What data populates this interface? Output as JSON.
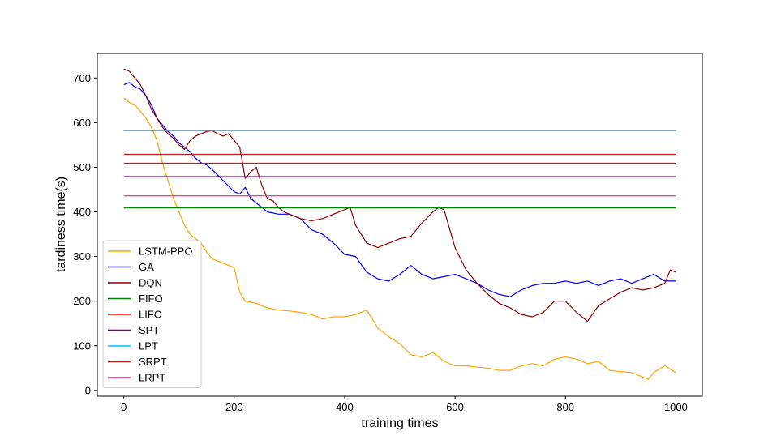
{
  "chart_data": {
    "type": "line",
    "title": "",
    "xlabel": "training times",
    "ylabel": "tardiness time(s)",
    "xlim": [
      -48,
      1048
    ],
    "ylim": [
      -13,
      755
    ],
    "xticks": [
      0,
      200,
      400,
      600,
      800,
      1000
    ],
    "yticks": [
      0,
      100,
      200,
      300,
      400,
      500,
      600,
      700
    ],
    "grid": false,
    "legend_position": "lower-left",
    "series": [
      {
        "name": "LSTM-PPO",
        "color": "#ffa500",
        "x": [
          0,
          10,
          20,
          30,
          40,
          50,
          60,
          70,
          80,
          90,
          100,
          110,
          120,
          130,
          140,
          150,
          160,
          170,
          180,
          190,
          200,
          210,
          220,
          240,
          260,
          280,
          300,
          320,
          340,
          360,
          380,
          400,
          420,
          440,
          460,
          480,
          500,
          520,
          540,
          560,
          580,
          600,
          620,
          640,
          660,
          680,
          700,
          720,
          740,
          760,
          780,
          800,
          820,
          840,
          860,
          880,
          900,
          920,
          940,
          950,
          960,
          980,
          1000
        ],
        "y": [
          655,
          645,
          640,
          625,
          610,
          590,
          560,
          510,
          470,
          430,
          400,
          370,
          350,
          340,
          330,
          310,
          295,
          290,
          285,
          280,
          275,
          220,
          200,
          195,
          185,
          180,
          178,
          175,
          170,
          160,
          165,
          165,
          170,
          180,
          140,
          120,
          105,
          80,
          75,
          85,
          65,
          55,
          55,
          52,
          50,
          45,
          45,
          55,
          60,
          55,
          70,
          75,
          70,
          60,
          65,
          45,
          42,
          40,
          30,
          25,
          40,
          55,
          40
        ]
      },
      {
        "name": "GA",
        "color": "#0000ff",
        "x": [
          0,
          10,
          20,
          30,
          40,
          50,
          60,
          70,
          80,
          90,
          100,
          110,
          120,
          130,
          140,
          150,
          160,
          180,
          200,
          210,
          220,
          230,
          240,
          260,
          280,
          300,
          320,
          340,
          360,
          380,
          400,
          420,
          440,
          460,
          480,
          500,
          520,
          540,
          560,
          580,
          600,
          620,
          640,
          660,
          680,
          700,
          720,
          740,
          760,
          780,
          800,
          820,
          840,
          860,
          880,
          900,
          920,
          940,
          960,
          980,
          1000
        ],
        "y": [
          685,
          690,
          680,
          675,
          660,
          640,
          610,
          595,
          580,
          570,
          555,
          545,
          535,
          520,
          510,
          505,
          495,
          470,
          445,
          440,
          455,
          430,
          420,
          400,
          395,
          395,
          385,
          360,
          350,
          330,
          305,
          300,
          265,
          250,
          245,
          260,
          280,
          260,
          250,
          255,
          260,
          250,
          240,
          225,
          215,
          210,
          225,
          235,
          240,
          240,
          245,
          240,
          245,
          235,
          245,
          250,
          240,
          250,
          260,
          245,
          245
        ]
      },
      {
        "name": "DQN",
        "color": "#8b0000",
        "x": [
          0,
          10,
          20,
          30,
          40,
          50,
          60,
          70,
          80,
          90,
          100,
          110,
          120,
          130,
          140,
          150,
          160,
          170,
          180,
          190,
          200,
          210,
          220,
          230,
          240,
          250,
          260,
          270,
          280,
          290,
          300,
          320,
          340,
          360,
          380,
          400,
          410,
          420,
          440,
          460,
          480,
          500,
          520,
          540,
          560,
          570,
          580,
          600,
          620,
          640,
          660,
          680,
          700,
          720,
          740,
          760,
          780,
          800,
          820,
          840,
          860,
          880,
          900,
          920,
          940,
          960,
          980,
          990,
          1000
        ],
        "y": [
          720,
          715,
          700,
          685,
          660,
          630,
          610,
          590,
          575,
          565,
          550,
          540,
          560,
          570,
          575,
          580,
          582,
          575,
          570,
          575,
          560,
          545,
          475,
          490,
          500,
          460,
          430,
          425,
          410,
          400,
          395,
          385,
          380,
          385,
          395,
          405,
          410,
          370,
          330,
          320,
          330,
          340,
          345,
          375,
          400,
          410,
          405,
          320,
          270,
          240,
          215,
          195,
          185,
          170,
          165,
          175,
          200,
          200,
          175,
          155,
          190,
          205,
          220,
          230,
          225,
          230,
          240,
          270,
          265
        ]
      },
      {
        "name": "FIFO",
        "color": "#008000",
        "x": [
          0,
          1000
        ],
        "y": [
          409,
          409
        ]
      },
      {
        "name": "LIFO",
        "color": "#ff0000",
        "x": [
          0,
          1000
        ],
        "y": [
          509,
          509
        ]
      },
      {
        "name": "SPT",
        "color": "#800080",
        "x": [
          0,
          1000
        ],
        "y": [
          479,
          479
        ]
      },
      {
        "name": "LPT",
        "color": "#00bfff",
        "x": [
          0,
          1000
        ],
        "y": [
          582,
          582
        ]
      },
      {
        "name": "SRPT",
        "color": "#b22222",
        "x": [
          0,
          1000
        ],
        "y": [
          529,
          529
        ]
      },
      {
        "name": "LRPT",
        "color": "#ff1493",
        "x": [
          0,
          1000
        ],
        "y": [
          436,
          436
        ]
      }
    ]
  }
}
